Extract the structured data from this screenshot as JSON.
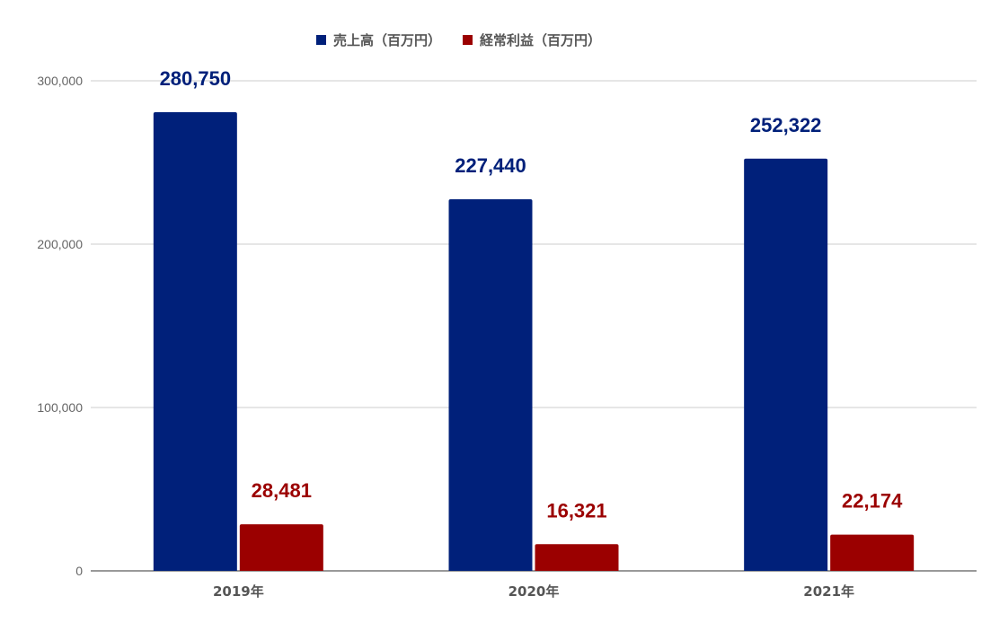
{
  "chart_data": {
    "type": "bar",
    "categories": [
      "2019年",
      "2020年",
      "2021年"
    ],
    "series": [
      {
        "name": "売上高（百万円）",
        "values": [
          280750,
          227440,
          252322
        ],
        "labels": [
          "280,750",
          "227,440",
          "252,322"
        ],
        "color": "#00207a"
      },
      {
        "name": "経常利益（百万円）",
        "values": [
          28481,
          16321,
          22174
        ],
        "labels": [
          "28,481",
          "16,321",
          "22,174"
        ],
        "color": "#9b0000"
      }
    ],
    "ylim": [
      0,
      300000
    ],
    "yticks": [
      0,
      100000,
      200000,
      300000
    ],
    "ytick_labels": [
      "0",
      "100,000",
      "200,000",
      "300,000"
    ],
    "grid": true,
    "legend": "top"
  }
}
